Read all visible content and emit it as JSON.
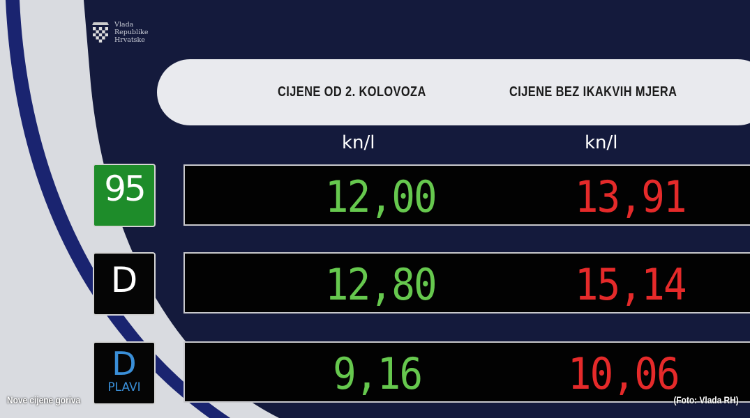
{
  "logo": {
    "lines": [
      "Vlada",
      "Republike",
      "Hrvatske"
    ],
    "icon": "croatian-coat-of-arms"
  },
  "header": {
    "col1": "CIJENE OD 2. KOLOVOZA",
    "col2": "CIJENE BEZ IKAKVIH MJERA"
  },
  "units": {
    "col1": "kn/l",
    "col2": "kn/l"
  },
  "rows": [
    {
      "fuel": "95",
      "sub": "",
      "badge_color": "#1e8c2a",
      "price_new": "12,00",
      "price_without_measures": "13,91"
    },
    {
      "fuel": "D",
      "sub": "",
      "badge_color": "#050505",
      "price_new": "12,80",
      "price_without_measures": "15,14"
    },
    {
      "fuel": "D",
      "sub": "PLAVI",
      "badge_color": "#050505",
      "price_new": "9,16",
      "price_without_measures": "10,06"
    }
  ],
  "colors": {
    "new_price": "#66c84e",
    "old_price": "#e52a2a",
    "navy": "#141a3c",
    "plavi": "#3a8fd8"
  },
  "caption": {
    "left": "Nove cijene goriva",
    "right": "(Foto: Vlada RH)"
  }
}
